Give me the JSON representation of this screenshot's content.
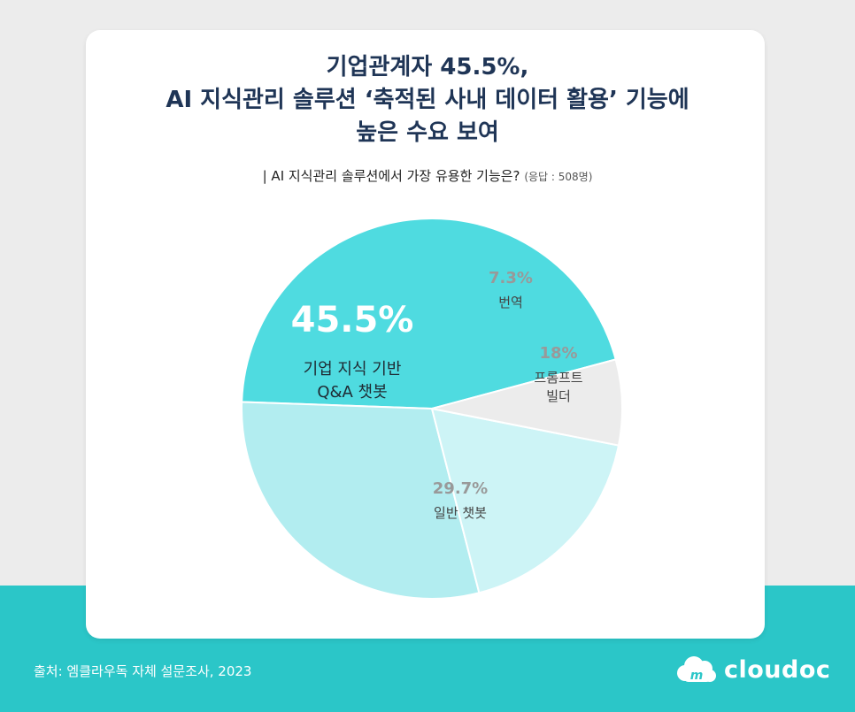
{
  "title_lines": [
    "기업관계자 45.5%,",
    "AI 지식관리 솔루션 ‘축적된 사내 데이터 활용’ 기능에",
    "높은 수요 보여"
  ],
  "subtitle": {
    "question": "| AI 지식관리 솔루션에서 가장 유용한 기능은?",
    "note": "(응답 : 508명)"
  },
  "source": "출처: 엠클라우독 자체 설문조사, 2023",
  "logo": {
    "text": "cloudoc",
    "icon": "cloud-m-icon"
  },
  "colors": {
    "band": "#2bc6c8",
    "slice_1": "#4fdbe0",
    "slice_2": "#b2edf0",
    "slice_3": "#cdf4f6",
    "slice_4": "#ececec"
  },
  "chart_data": {
    "type": "pie",
    "slices": [
      {
        "label": "기업 지식 기반\nQ&A 챗봇",
        "value": 45.5,
        "display": "45.5%",
        "color": "#4fdbe0"
      },
      {
        "label": "일반 챗봇",
        "value": 29.7,
        "display": "29.7%",
        "color": "#b2edf0"
      },
      {
        "label": "프롬프트\n빌더",
        "value": 18,
        "display": "18%",
        "color": "#cdf4f6"
      },
      {
        "label": "번역",
        "value": 7.3,
        "display": "7.3%",
        "color": "#ececec"
      }
    ],
    "start_angle_deg": 15,
    "direction": "counterclockwise"
  }
}
